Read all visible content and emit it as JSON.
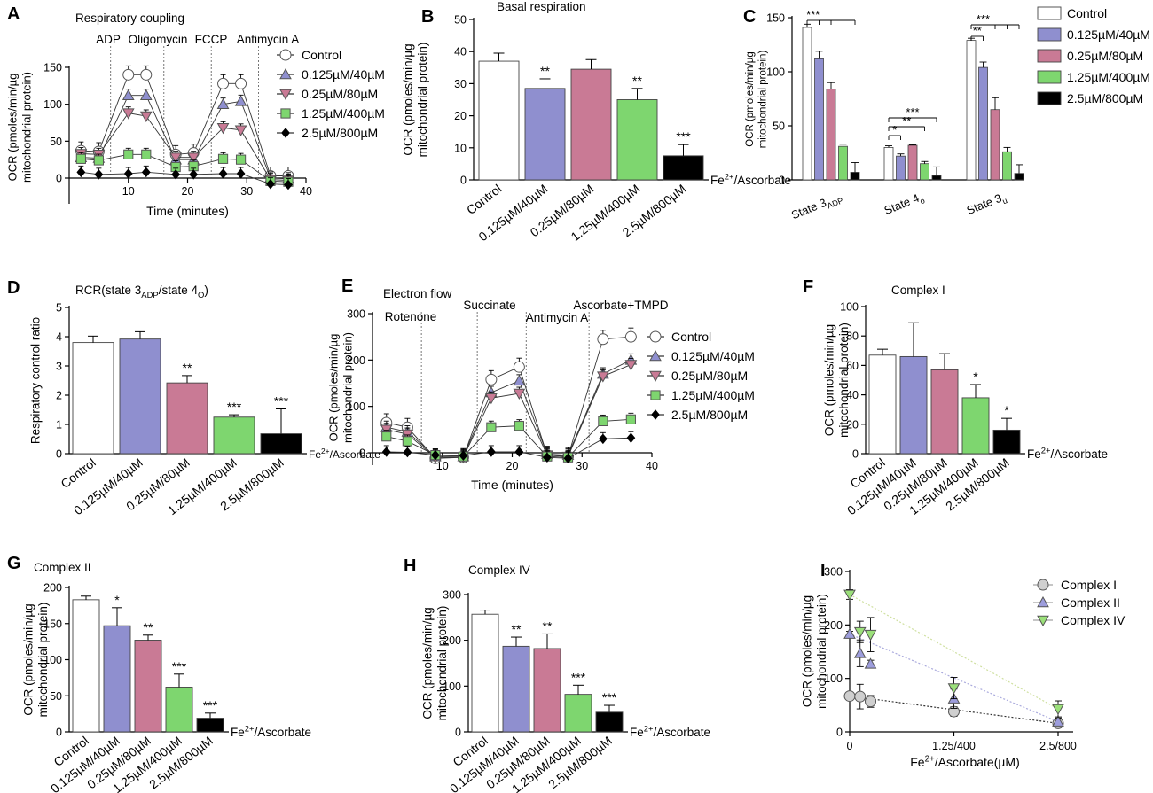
{
  "chart_data": [
    {
      "panel": "A",
      "type": "line",
      "title": "Respiratory coupling",
      "xlabel": "Time (minutes)",
      "ylabel": [
        "OCR (pmoles/min/µg",
        "mitochondrial protein)"
      ],
      "xlim": [
        0,
        40
      ],
      "ylim": [
        0,
        150
      ],
      "xticks": [
        10,
        20,
        30,
        40
      ],
      "yticks": [
        0,
        50,
        100,
        150
      ],
      "events": [
        {
          "t": 7,
          "label": "ADP"
        },
        {
          "t": 16,
          "label": "Oligomycin"
        },
        {
          "t": 24,
          "label": "FCCP"
        },
        {
          "t": 32,
          "label": "Antimycin A"
        }
      ],
      "x": [
        2,
        5,
        10,
        13,
        18,
        21,
        26,
        29,
        34,
        37
      ],
      "series": [
        {
          "name": "Control",
          "values": [
            37,
            36,
            140,
            140,
            32,
            34,
            128,
            128,
            3,
            3
          ]
        },
        {
          "name": "0.125µM/40µM",
          "values": [
            28,
            27,
            112,
            112,
            25,
            25,
            100,
            104,
            0,
            -1
          ]
        },
        {
          "name": "0.25µM/80µM",
          "values": [
            33,
            32,
            88,
            84,
            28,
            28,
            68,
            65,
            -2,
            -3
          ]
        },
        {
          "name": "1.25µM/400µM",
          "values": [
            26,
            24,
            32,
            32,
            15,
            16,
            26,
            25,
            -4,
            -5
          ]
        },
        {
          "name": "2.5µM/800µM",
          "values": [
            8,
            5,
            6,
            8,
            5,
            5,
            6,
            6,
            -8,
            -9
          ]
        }
      ]
    },
    {
      "panel": "B",
      "type": "bar",
      "title": "Basal respiration",
      "ylabel": [
        "OCR (pmoles/min/µg",
        "mitochondrial protein)"
      ],
      "ylim": [
        0,
        50
      ],
      "yticks": [
        0,
        10,
        20,
        30,
        40,
        50
      ],
      "categories": [
        "Control",
        "0.125µM/40µM",
        "0.25µM/80µM",
        "1.25µM/400µM",
        "2.5µM/800µM"
      ],
      "values": [
        37,
        28.5,
        34.5,
        25,
        7.5
      ],
      "errors": [
        2.5,
        3,
        3,
        3.5,
        3.5
      ],
      "significance": [
        "",
        "**",
        "",
        "**",
        "***"
      ],
      "xlabel": "Fe2+/Ascorbate"
    },
    {
      "panel": "C",
      "type": "bar",
      "grouped": true,
      "ylabel": [
        "OCR (pmoles/min/µg",
        "mitochondrial protein)"
      ],
      "ylim": [
        0,
        150
      ],
      "yticks": [
        0,
        50,
        100,
        150
      ],
      "groups": [
        "State 3ADP",
        "State 4o",
        "State 3u"
      ],
      "legend": [
        "Control",
        "0.125µM/40µM",
        "0.25µM/80µM",
        "1.25µM/400µM",
        "2.5µM/800µM"
      ],
      "series": [
        {
          "name": "Control",
          "values": [
            141,
            30,
            129
          ],
          "errors": [
            3,
            1.5,
            2
          ]
        },
        {
          "name": "0.125µM/40µM",
          "values": [
            112,
            22,
            104
          ],
          "errors": [
            7,
            2,
            5
          ]
        },
        {
          "name": "0.25µM/80µM",
          "values": [
            84,
            32,
            65
          ],
          "errors": [
            6,
            0.5,
            11
          ]
        },
        {
          "name": "1.25µM/400µM",
          "values": [
            31,
            15,
            26
          ],
          "errors": [
            2,
            2,
            4
          ]
        },
        {
          "name": "2.5µM/800µM",
          "values": [
            7,
            4,
            6
          ],
          "errors": [
            9,
            8,
            8
          ]
        }
      ],
      "significance_labels": [
        "***",
        "*",
        "**",
        "***",
        "**",
        "***"
      ]
    },
    {
      "panel": "D",
      "type": "bar",
      "title": "RCR(state 3ADP/state 4O)",
      "ylabel": "Respiratory control ratio",
      "ylim": [
        0,
        5
      ],
      "yticks": [
        0,
        1,
        2,
        3,
        4,
        5
      ],
      "categories": [
        "Control",
        "0.125µM/40µM",
        "0.25µM/80µM",
        "1.25µM/400µM",
        "2.5µM/800µM"
      ],
      "values": [
        3.8,
        3.92,
        2.42,
        1.25,
        0.68
      ],
      "errors": [
        0.22,
        0.25,
        0.25,
        0.08,
        0.85
      ],
      "significance": [
        "",
        "",
        "**",
        "***",
        "***"
      ],
      "xlabel": "Fe2+/Ascorbate"
    },
    {
      "panel": "E",
      "type": "line",
      "title": "Electron flow",
      "xlabel": "Time (minutes)",
      "ylabel": [
        "OCR (pmoles/min/µg",
        "mitochondrial protein)"
      ],
      "xlim": [
        0,
        40
      ],
      "ylim": [
        0,
        300
      ],
      "xticks": [
        10,
        20,
        30,
        40
      ],
      "yticks": [
        0,
        100,
        200,
        300
      ],
      "events": [
        {
          "t": 7,
          "label": "Rotenone"
        },
        {
          "t": 15,
          "label": "Succinate"
        },
        {
          "t": 22,
          "label": "Antimycin A"
        },
        {
          "t": 31,
          "label": "Ascorbate+TMPD"
        }
      ],
      "x": [
        2,
        5,
        9,
        13,
        17,
        21,
        25,
        28,
        33,
        37
      ],
      "series": [
        {
          "name": "Control",
          "values": [
            65,
            55,
            -12,
            -10,
            158,
            185,
            -5,
            -8,
            245,
            250
          ]
        },
        {
          "name": "0.125µM/40µM",
          "values": [
            55,
            45,
            -8,
            -8,
            130,
            155,
            -3,
            -5,
            170,
            200
          ]
        },
        {
          "name": "0.25µM/80µM",
          "values": [
            50,
            40,
            -10,
            -10,
            118,
            128,
            -5,
            -8,
            165,
            190
          ]
        },
        {
          "name": "1.25µM/400µM",
          "values": [
            35,
            25,
            -5,
            -8,
            55,
            58,
            -8,
            -10,
            68,
            72
          ]
        },
        {
          "name": "2.5µM/800µM",
          "values": [
            2,
            1,
            -5,
            -6,
            2,
            2,
            -10,
            -12,
            30,
            32
          ]
        }
      ]
    },
    {
      "panel": "F",
      "type": "bar",
      "title": "Complex I",
      "ylabel": [
        "OCR (pmoles/min/µg",
        "mitochondrial protein)"
      ],
      "ylim": [
        0,
        100
      ],
      "yticks": [
        0,
        20,
        40,
        60,
        80,
        100
      ],
      "categories": [
        "Control",
        "0.125µM/40µM",
        "0.25µM/80µM",
        "1.25µM/400µM",
        "2.5µM/800µM"
      ],
      "values": [
        67,
        66,
        57,
        38,
        16
      ],
      "errors": [
        4,
        23,
        11,
        9,
        8
      ],
      "significance": [
        "",
        "",
        "",
        "*",
        "*"
      ],
      "xlabel": "Fe2+/Ascorbate"
    },
    {
      "panel": "G",
      "type": "bar",
      "title": "Complex II",
      "ylabel": [
        "OCR (pmoles/min/µg",
        "mitochondrial protein)"
      ],
      "ylim": [
        0,
        200
      ],
      "yticks": [
        0,
        50,
        100,
        150,
        200
      ],
      "categories": [
        "Control",
        "0.125µM/40µM",
        "0.25µM/80µM",
        "1.25µM/400µM",
        "2.5µM/800µM"
      ],
      "values": [
        183,
        147,
        127,
        62,
        19
      ],
      "errors": [
        5,
        25,
        7,
        18,
        7
      ],
      "significance": [
        "",
        "*",
        "**",
        "***",
        "***"
      ],
      "xlabel": "Fe2+/Ascorbate"
    },
    {
      "panel": "H",
      "type": "bar",
      "title": "Complex IV",
      "ylabel": [
        "OCR (pmoles/min/µg",
        "mitochondrial protein)"
      ],
      "ylim": [
        0,
        300
      ],
      "yticks": [
        0,
        100,
        200,
        300
      ],
      "categories": [
        "Control",
        "0.125µM/40µM",
        "0.25µM/80µM",
        "1.25µM/400µM",
        "2.5µM/800µM"
      ],
      "values": [
        257,
        187,
        182,
        82,
        43
      ],
      "errors": [
        9,
        20,
        32,
        20,
        15
      ],
      "significance": [
        "",
        "**",
        "**",
        "***",
        "***"
      ],
      "xlabel": "Fe2+/Ascorbate"
    },
    {
      "panel": "I",
      "type": "scatter",
      "xlabel": "Fe2+/Ascorbate(µM)",
      "ylabel": [
        "OCR (pmoles/min/µg",
        "mitochondrial protein)"
      ],
      "ylim": [
        0,
        300
      ],
      "yticks": [
        0,
        100,
        200,
        300
      ],
      "xticks": [
        {
          "v": 0,
          "label": "0"
        },
        {
          "v": 1.25,
          "label": "1.25/400"
        },
        {
          "v": 2.5,
          "label": "2.5/800"
        }
      ],
      "series": [
        {
          "name": "Complex I",
          "x": [
            0,
            0.125,
            0.25,
            1.25,
            2.5
          ],
          "values": [
            67,
            66,
            57,
            38,
            16
          ],
          "errors": [
            4,
            23,
            11,
            9,
            8
          ]
        },
        {
          "name": "Complex II",
          "x": [
            0,
            0.125,
            0.25,
            1.25,
            2.5
          ],
          "values": [
            183,
            147,
            127,
            62,
            19
          ],
          "errors": [
            5,
            25,
            7,
            18,
            7
          ]
        },
        {
          "name": "Complex IV",
          "x": [
            0,
            0.125,
            0.25,
            1.25,
            2.5
          ],
          "values": [
            257,
            187,
            182,
            82,
            43
          ],
          "errors": [
            9,
            20,
            32,
            20,
            15
          ]
        }
      ]
    }
  ],
  "panel_letters": [
    "A",
    "B",
    "C",
    "D",
    "E",
    "F",
    "G",
    "H",
    "I"
  ],
  "colors": {
    "control": "#ffffff",
    "c1": "#8f8fcf",
    "c2": "#c97a95",
    "c3": "#7ed66f",
    "c4": "#000000",
    "iComplexI": "#cfcfcf",
    "iComplexII": "#9d9ddc",
    "iComplexIV": "#9be07a"
  }
}
